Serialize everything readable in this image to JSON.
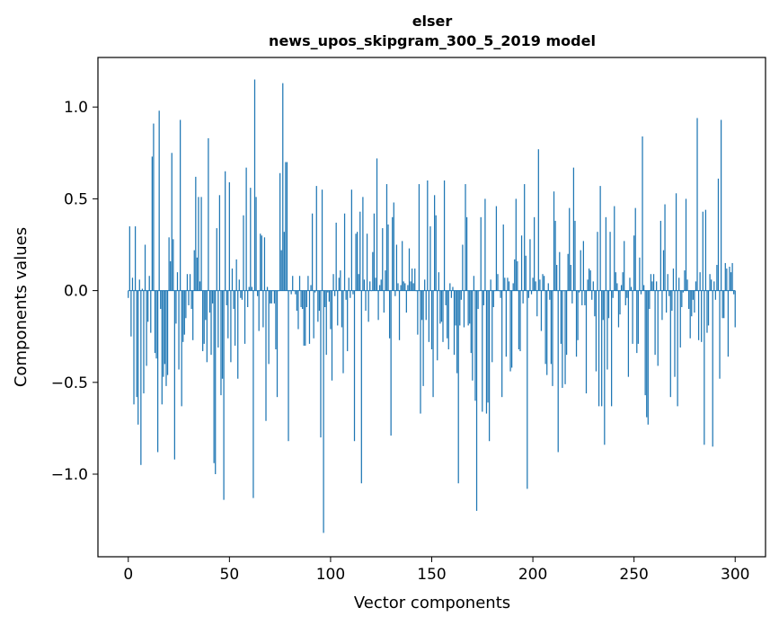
{
  "chart_data": {
    "type": "bar",
    "title": "elser",
    "subtitle": "news_upos_skipgram_300_5_2019 model",
    "xlabel": "Vector components",
    "ylabel": "Components values",
    "xlim": [
      -15,
      315
    ],
    "ylim": [
      -1.45,
      1.27
    ],
    "xticks": [
      0,
      50,
      100,
      150,
      200,
      250,
      300
    ],
    "xtick_labels": [
      "0",
      "50",
      "100",
      "150",
      "200",
      "250",
      "300"
    ],
    "yticks": [
      -1.0,
      -0.5,
      0.0,
      0.5,
      1.0
    ],
    "ytick_labels": [
      "−1.0",
      "−0.5",
      "0.0",
      "0.5",
      "1.0"
    ],
    "grid": false,
    "bar_color": "#1f77b4",
    "values": [
      -0.04,
      0.35,
      -0.25,
      0.07,
      -0.62,
      0.35,
      -0.58,
      -0.73,
      0.06,
      -0.95,
      0.01,
      -0.56,
      0.25,
      -0.41,
      -0.17,
      0.08,
      -0.23,
      0.73,
      0.91,
      -0.34,
      -0.37,
      -0.88,
      0.98,
      -0.1,
      -0.62,
      -0.47,
      -0.4,
      -0.52,
      -0.46,
      0.29,
      0.16,
      0.75,
      0.28,
      -0.92,
      -0.18,
      0.1,
      -0.43,
      0.93,
      -0.63,
      -0.28,
      -0.24,
      -0.15,
      0.09,
      -0.08,
      0.09,
      -0.1,
      -0.27,
      0.22,
      0.62,
      0.18,
      0.51,
      0.05,
      0.51,
      -0.33,
      -0.29,
      -0.16,
      -0.39,
      0.83,
      -0.12,
      -0.35,
      -0.07,
      -0.94,
      -1.0,
      0.34,
      -0.31,
      0.52,
      -0.57,
      -0.48,
      -1.14,
      0.65,
      -0.08,
      -0.26,
      0.59,
      -0.39,
      0.12,
      -0.1,
      -0.3,
      0.17,
      -0.48,
      0.06,
      -0.04,
      -0.05,
      0.41,
      -0.29,
      0.67,
      -0.09,
      0.02,
      0.56,
      0.02,
      -1.13,
      1.15,
      0.51,
      -0.03,
      -0.22,
      0.31,
      0.3,
      -0.2,
      0.29,
      -0.71,
      0.02,
      -0.4,
      -0.07,
      -0.07,
      0.0,
      -0.07,
      -0.32,
      -0.58,
      0.0,
      0.64,
      0.22,
      1.13,
      0.32,
      0.7,
      0.7,
      -0.82,
      0.0,
      -0.02,
      0.08,
      0.0,
      -0.02,
      -0.11,
      -0.21,
      0.08,
      -0.09,
      -0.1,
      -0.3,
      -0.3,
      -0.09,
      0.08,
      -0.29,
      0.03,
      0.42,
      -0.26,
      -0.01,
      0.57,
      -0.17,
      -0.11,
      -0.8,
      0.55,
      -1.32,
      -0.09,
      -0.35,
      -0.01,
      -0.06,
      -0.21,
      -0.49,
      0.09,
      -0.03,
      0.37,
      -0.19,
      0.07,
      0.11,
      -0.2,
      -0.45,
      0.42,
      -0.05,
      -0.33,
      0.07,
      -0.04,
      0.55,
      -0.02,
      -0.82,
      0.31,
      0.32,
      0.09,
      0.43,
      -1.05,
      0.51,
      0.06,
      -0.11,
      0.31,
      -0.17,
      0.05,
      0.0,
      0.21,
      0.42,
      0.07,
      0.72,
      -0.16,
      0.03,
      0.06,
      0.34,
      -0.12,
      0.11,
      0.58,
      0.36,
      -0.26,
      -0.79,
      0.4,
      0.48,
      -0.03,
      0.25,
      0.04,
      -0.27,
      0.03,
      0.27,
      0.05,
      0.04,
      -0.12,
      0.03,
      0.23,
      0.05,
      0.12,
      0.04,
      0.12,
      0.0,
      -0.24,
      0.58,
      -0.67,
      -0.16,
      -0.52,
      0.06,
      -0.16,
      0.6,
      -0.28,
      0.35,
      -0.32,
      -0.58,
      0.52,
      0.41,
      -0.38,
      0.1,
      -0.18,
      -0.17,
      -0.28,
      0.6,
      -0.08,
      -0.26,
      -0.32,
      0.04,
      -0.04,
      0.02,
      -0.35,
      -0.19,
      -0.45,
      -1.05,
      -0.19,
      -0.05,
      0.25,
      -0.2,
      0.58,
      0.4,
      -0.19,
      -0.18,
      -0.34,
      -0.49,
      0.08,
      -0.6,
      -1.2,
      -0.1,
      0.0,
      0.4,
      -0.66,
      -0.08,
      0.5,
      -0.67,
      -0.61,
      -0.82,
      0.06,
      -0.39,
      -0.09,
      0.0,
      0.46,
      0.09,
      0.0,
      -0.04,
      -0.58,
      0.36,
      0.07,
      -0.36,
      0.07,
      0.05,
      -0.44,
      -0.42,
      0.04,
      0.17,
      0.5,
      0.16,
      -0.32,
      -0.33,
      0.3,
      -0.07,
      0.58,
      0.19,
      -1.08,
      -0.04,
      0.28,
      -0.02,
      0.07,
      0.4,
      0.05,
      -0.14,
      0.77,
      0.06,
      -0.22,
      0.09,
      0.08,
      -0.4,
      -0.46,
      0.04,
      -0.05,
      -0.4,
      -0.52,
      0.54,
      0.38,
      0.14,
      -0.88,
      0.21,
      -0.29,
      -0.53,
      0.0,
      -0.51,
      -0.35,
      0.2,
      0.45,
      0.14,
      -0.07,
      0.67,
      0.38,
      -0.36,
      -0.27,
      -0.01,
      0.22,
      -0.08,
      0.27,
      -0.08,
      -0.56,
      0.06,
      0.12,
      0.11,
      -0.05,
      0.05,
      -0.14,
      -0.44,
      0.32,
      -0.63,
      0.57,
      -0.63,
      -0.16,
      -0.84,
      0.4,
      -0.43,
      -0.15,
      0.32,
      -0.63,
      -0.04,
      0.46,
      0.1,
      0.04,
      -0.2,
      -0.13,
      0.03,
      0.1,
      0.27,
      -0.08,
      -0.04,
      -0.47,
      0.07,
      0.02,
      -0.29,
      0.3,
      0.45,
      -0.34,
      -0.29,
      0.18,
      -0.02,
      0.84,
      0.03,
      -0.57,
      -0.69,
      -0.73,
      -0.1,
      0.09,
      0.05,
      0.09,
      -0.35,
      0.05,
      -0.41,
      0.0,
      0.38,
      -0.16,
      0.22,
      0.47,
      -0.12,
      0.09,
      -0.03,
      -0.58,
      -0.11,
      0.12,
      -0.47,
      0.53,
      -0.63,
      0.07,
      -0.31,
      -0.09,
      -0.01,
      0.11,
      0.5,
      0.06,
      -0.1,
      -0.26,
      -0.14,
      -0.05,
      -0.12,
      0.05,
      0.94,
      -0.27,
      0.1,
      -0.28,
      0.43,
      -0.84,
      0.44,
      -0.23,
      -0.19,
      0.09,
      0.06,
      -0.85,
      0.05,
      -0.05,
      0.14,
      0.61,
      -0.48,
      0.93,
      -0.15,
      -0.15,
      0.15,
      0.12,
      -0.36,
      0.13,
      0.1,
      0.15,
      -0.02,
      -0.2
    ]
  }
}
